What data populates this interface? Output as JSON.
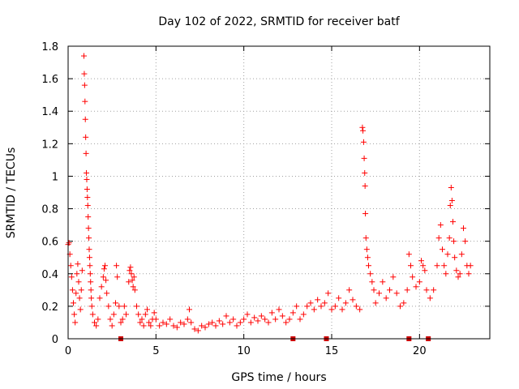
{
  "chart_data": {
    "type": "scatter",
    "title": "Day 102 of 2022, SRMTID for receiver batf",
    "xlabel": "GPS time / hours",
    "ylabel": "SRMTID / TECUs",
    "xlim": [
      0,
      24
    ],
    "ylim": [
      0,
      1.8
    ],
    "x_ticks": [
      0,
      5,
      10,
      15,
      20
    ],
    "x_tick_labels": [
      "0",
      "5",
      "10",
      "15",
      "20"
    ],
    "y_ticks": [
      0,
      0.2,
      0.4,
      0.6,
      0.8,
      1,
      1.2,
      1.4,
      1.6,
      1.8
    ],
    "y_tick_labels": [
      "0",
      "0.2",
      "0.4",
      "0.6",
      "0.8",
      "1",
      "1.2",
      "1.4",
      "1.6",
      "1.8"
    ],
    "grid": true,
    "marker": "+",
    "color": "#ff0000",
    "gap_markers_x": [
      3.0,
      12.8,
      14.7,
      19.4,
      20.5
    ],
    "series": [
      {
        "name": "SRMTID",
        "points": [
          [
            0.0,
            0.58
          ],
          [
            0.05,
            0.59
          ],
          [
            0.1,
            0.52
          ],
          [
            0.15,
            0.45
          ],
          [
            0.2,
            0.38
          ],
          [
            0.25,
            0.3
          ],
          [
            0.3,
            0.22
          ],
          [
            0.35,
            0.15
          ],
          [
            0.4,
            0.1
          ],
          [
            0.45,
            0.28
          ],
          [
            0.5,
            0.4
          ],
          [
            0.55,
            0.46
          ],
          [
            0.6,
            0.35
          ],
          [
            0.65,
            0.25
          ],
          [
            0.7,
            0.18
          ],
          [
            0.75,
            0.3
          ],
          [
            0.8,
            0.42
          ],
          [
            0.9,
            1.74
          ],
          [
            0.92,
            1.63
          ],
          [
            0.94,
            1.56
          ],
          [
            0.96,
            1.46
          ],
          [
            0.98,
            1.35
          ],
          [
            1.0,
            1.24
          ],
          [
            1.02,
            1.14
          ],
          [
            1.04,
            1.02
          ],
          [
            1.06,
            0.98
          ],
          [
            1.08,
            0.92
          ],
          [
            1.1,
            0.87
          ],
          [
            1.12,
            0.82
          ],
          [
            1.14,
            0.75
          ],
          [
            1.16,
            0.68
          ],
          [
            1.18,
            0.62
          ],
          [
            1.2,
            0.55
          ],
          [
            1.22,
            0.5
          ],
          [
            1.24,
            0.45
          ],
          [
            1.26,
            0.4
          ],
          [
            1.28,
            0.35
          ],
          [
            1.3,
            0.3
          ],
          [
            1.32,
            0.25
          ],
          [
            1.35,
            0.2
          ],
          [
            1.4,
            0.15
          ],
          [
            1.5,
            0.1
          ],
          [
            1.6,
            0.08
          ],
          [
            1.7,
            0.12
          ],
          [
            1.8,
            0.25
          ],
          [
            1.9,
            0.32
          ],
          [
            2.0,
            0.38
          ],
          [
            2.05,
            0.43
          ],
          [
            2.1,
            0.45
          ],
          [
            2.15,
            0.36
          ],
          [
            2.2,
            0.28
          ],
          [
            2.3,
            0.2
          ],
          [
            2.4,
            0.12
          ],
          [
            2.5,
            0.08
          ],
          [
            2.6,
            0.15
          ],
          [
            2.7,
            0.22
          ],
          [
            2.75,
            0.45
          ],
          [
            2.8,
            0.38
          ],
          [
            2.9,
            0.2
          ],
          [
            3.0,
            0.1
          ],
          [
            3.1,
            0.12
          ],
          [
            3.2,
            0.2
          ],
          [
            3.3,
            0.15
          ],
          [
            3.45,
            0.35
          ],
          [
            3.5,
            0.42
          ],
          [
            3.55,
            0.44
          ],
          [
            3.6,
            0.4
          ],
          [
            3.65,
            0.36
          ],
          [
            3.7,
            0.32
          ],
          [
            3.75,
            0.38
          ],
          [
            3.8,
            0.3
          ],
          [
            3.9,
            0.2
          ],
          [
            4.0,
            0.15
          ],
          [
            4.1,
            0.1
          ],
          [
            4.2,
            0.12
          ],
          [
            4.3,
            0.08
          ],
          [
            4.4,
            0.15
          ],
          [
            4.5,
            0.18
          ],
          [
            4.6,
            0.1
          ],
          [
            4.7,
            0.08
          ],
          [
            4.8,
            0.12
          ],
          [
            4.9,
            0.16
          ],
          [
            5.0,
            0.12
          ],
          [
            5.2,
            0.08
          ],
          [
            5.4,
            0.1
          ],
          [
            5.6,
            0.09
          ],
          [
            5.8,
            0.12
          ],
          [
            6.0,
            0.08
          ],
          [
            6.2,
            0.07
          ],
          [
            6.4,
            0.1
          ],
          [
            6.6,
            0.09
          ],
          [
            6.8,
            0.12
          ],
          [
            6.9,
            0.18
          ],
          [
            7.0,
            0.1
          ],
          [
            7.2,
            0.06
          ],
          [
            7.4,
            0.05
          ],
          [
            7.6,
            0.08
          ],
          [
            7.8,
            0.07
          ],
          [
            8.0,
            0.09
          ],
          [
            8.2,
            0.1
          ],
          [
            8.4,
            0.08
          ],
          [
            8.6,
            0.11
          ],
          [
            8.8,
            0.09
          ],
          [
            9.0,
            0.14
          ],
          [
            9.2,
            0.1
          ],
          [
            9.4,
            0.12
          ],
          [
            9.6,
            0.08
          ],
          [
            9.8,
            0.1
          ],
          [
            10.0,
            0.12
          ],
          [
            10.2,
            0.15
          ],
          [
            10.4,
            0.1
          ],
          [
            10.6,
            0.13
          ],
          [
            10.8,
            0.11
          ],
          [
            11.0,
            0.14
          ],
          [
            11.2,
            0.12
          ],
          [
            11.4,
            0.1
          ],
          [
            11.6,
            0.16
          ],
          [
            11.8,
            0.12
          ],
          [
            12.0,
            0.18
          ],
          [
            12.2,
            0.14
          ],
          [
            12.4,
            0.1
          ],
          [
            12.6,
            0.12
          ],
          [
            12.8,
            0.16
          ],
          [
            13.0,
            0.2
          ],
          [
            13.2,
            0.12
          ],
          [
            13.4,
            0.15
          ],
          [
            13.6,
            0.2
          ],
          [
            13.8,
            0.22
          ],
          [
            14.0,
            0.18
          ],
          [
            14.2,
            0.24
          ],
          [
            14.4,
            0.2
          ],
          [
            14.6,
            0.22
          ],
          [
            14.8,
            0.28
          ],
          [
            15.0,
            0.18
          ],
          [
            15.2,
            0.2
          ],
          [
            15.4,
            0.25
          ],
          [
            15.6,
            0.18
          ],
          [
            15.8,
            0.22
          ],
          [
            16.0,
            0.3
          ],
          [
            16.2,
            0.24
          ],
          [
            16.4,
            0.2
          ],
          [
            16.6,
            0.18
          ],
          [
            16.75,
            1.3
          ],
          [
            16.78,
            1.28
          ],
          [
            16.82,
            1.21
          ],
          [
            16.85,
            1.11
          ],
          [
            16.88,
            1.02
          ],
          [
            16.9,
            0.94
          ],
          [
            16.92,
            0.77
          ],
          [
            16.95,
            0.62
          ],
          [
            17.0,
            0.55
          ],
          [
            17.05,
            0.5
          ],
          [
            17.1,
            0.45
          ],
          [
            17.2,
            0.4
          ],
          [
            17.3,
            0.35
          ],
          [
            17.4,
            0.3
          ],
          [
            17.5,
            0.22
          ],
          [
            17.7,
            0.28
          ],
          [
            17.9,
            0.35
          ],
          [
            18.1,
            0.25
          ],
          [
            18.3,
            0.3
          ],
          [
            18.5,
            0.38
          ],
          [
            18.7,
            0.28
          ],
          [
            18.9,
            0.2
          ],
          [
            19.1,
            0.22
          ],
          [
            19.3,
            0.3
          ],
          [
            19.4,
            0.52
          ],
          [
            19.5,
            0.45
          ],
          [
            19.6,
            0.38
          ],
          [
            19.8,
            0.32
          ],
          [
            20.0,
            0.35
          ],
          [
            20.1,
            0.48
          ],
          [
            20.2,
            0.45
          ],
          [
            20.3,
            0.42
          ],
          [
            20.4,
            0.3
          ],
          [
            20.6,
            0.25
          ],
          [
            20.8,
            0.3
          ],
          [
            21.0,
            0.45
          ],
          [
            21.1,
            0.62
          ],
          [
            21.2,
            0.7
          ],
          [
            21.3,
            0.55
          ],
          [
            21.4,
            0.45
          ],
          [
            21.5,
            0.4
          ],
          [
            21.6,
            0.52
          ],
          [
            21.7,
            0.62
          ],
          [
            21.75,
            0.82
          ],
          [
            21.8,
            0.93
          ],
          [
            21.85,
            0.85
          ],
          [
            21.9,
            0.72
          ],
          [
            21.95,
            0.6
          ],
          [
            22.0,
            0.5
          ],
          [
            22.1,
            0.42
          ],
          [
            22.2,
            0.38
          ],
          [
            22.3,
            0.4
          ],
          [
            22.4,
            0.52
          ],
          [
            22.5,
            0.68
          ],
          [
            22.6,
            0.6
          ],
          [
            22.7,
            0.45
          ],
          [
            22.8,
            0.4
          ],
          [
            22.9,
            0.45
          ]
        ]
      }
    ]
  }
}
